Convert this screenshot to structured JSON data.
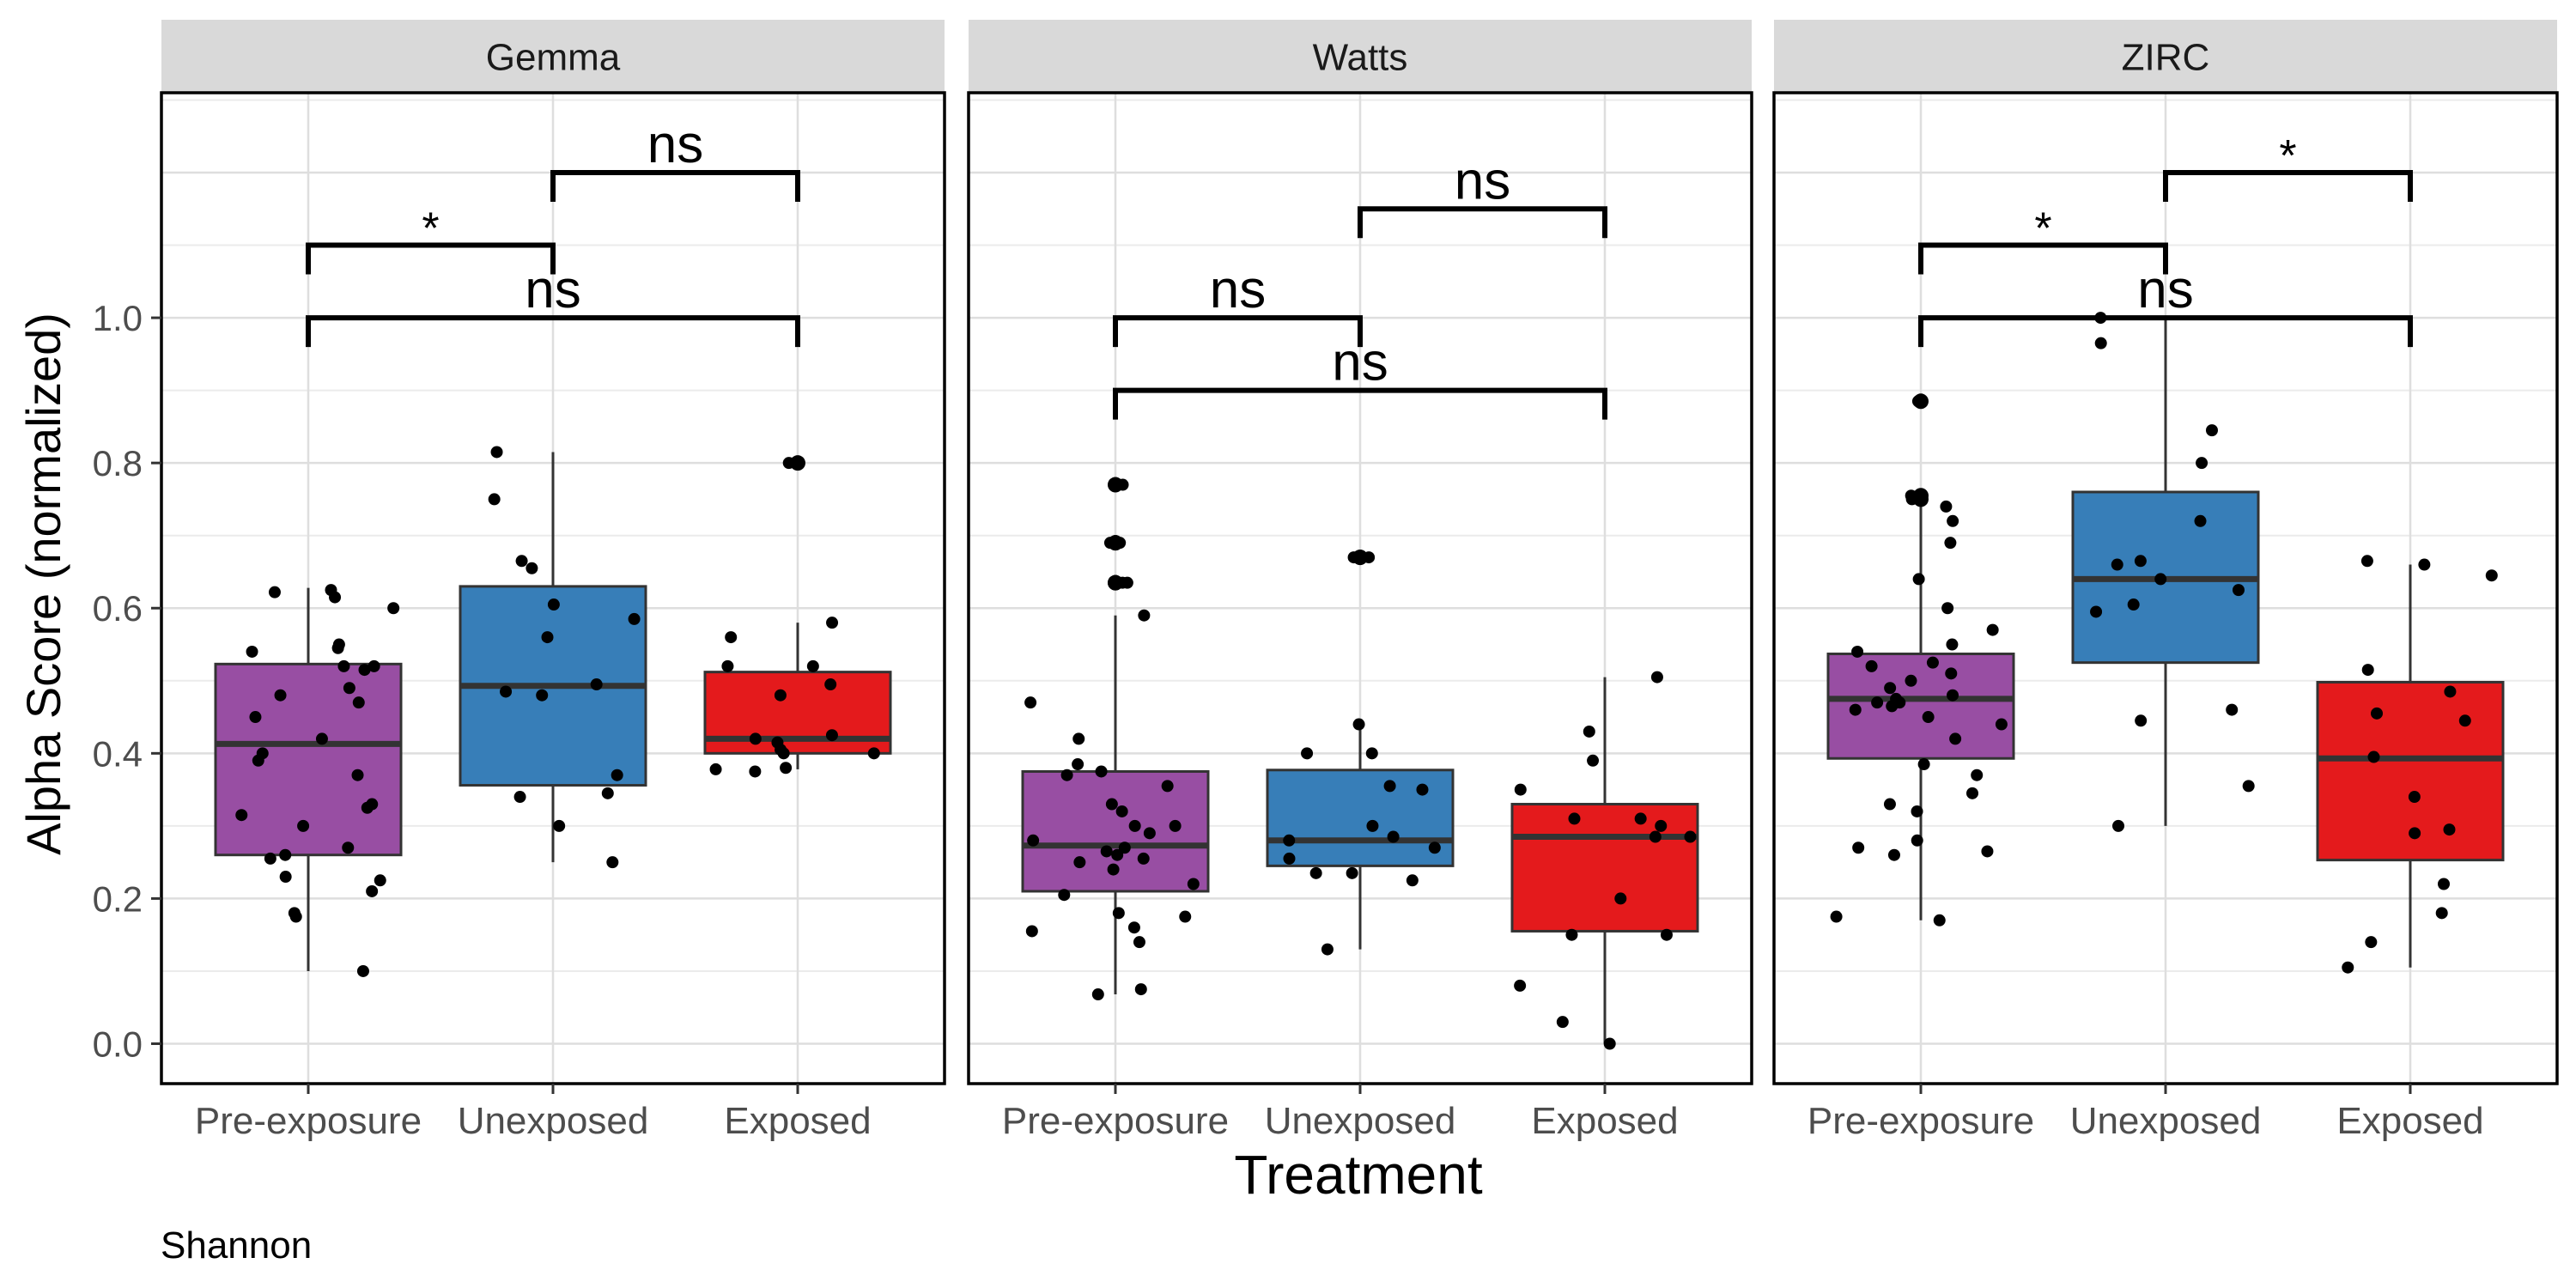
{
  "chart_data": {
    "type": "boxplot",
    "ylabel": "Alpha Score (normalized)",
    "xlabel": "Treatment",
    "caption": "Shannon",
    "y_ticks": [
      "0.0",
      "0.2",
      "0.4",
      "0.6",
      "0.8",
      "1.0"
    ],
    "y_tick_values": [
      0.0,
      0.2,
      0.4,
      0.6,
      0.8,
      1.0
    ],
    "ylim": [
      -0.055,
      1.31
    ],
    "categories": [
      "Pre-exposure",
      "Unexposed",
      "Exposed"
    ],
    "colors": {
      "Pre-exposure": "#984ea3",
      "Unexposed": "#377eb8",
      "Exposed": "#e41a1c"
    },
    "grid": true,
    "facets": [
      {
        "name": "Gemma",
        "boxes": [
          {
            "category": "Pre-exposure",
            "q1": 0.26,
            "median": 0.413,
            "q3": 0.523,
            "whisker_low": 0.1,
            "whisker_high": 0.628,
            "points": [
              0.615,
              0.622,
              0.625,
              0.6,
              0.55,
              0.545,
              0.54,
              0.52,
              0.52,
              0.515,
              0.49,
              0.48,
              0.47,
              0.45,
              0.42,
              0.4,
              0.39,
              0.37,
              0.33,
              0.325,
              0.315,
              0.3,
              0.27,
              0.26,
              0.255,
              0.23,
              0.225,
              0.21,
              0.18,
              0.175,
              0.1
            ],
            "outliers": []
          },
          {
            "category": "Unexposed",
            "q1": 0.356,
            "median": 0.493,
            "q3": 0.63,
            "whisker_low": 0.25,
            "whisker_high": 0.815,
            "points": [
              0.815,
              0.75,
              0.665,
              0.655,
              0.605,
              0.585,
              0.56,
              0.495,
              0.485,
              0.48,
              0.37,
              0.345,
              0.34,
              0.3,
              0.25
            ],
            "outliers": []
          },
          {
            "category": "Exposed",
            "q1": 0.4,
            "median": 0.42,
            "q3": 0.512,
            "whisker_low": 0.378,
            "whisker_high": 0.58,
            "points": [
              0.58,
              0.56,
              0.52,
              0.52,
              0.495,
              0.48,
              0.425,
              0.42,
              0.415,
              0.405,
              0.4,
              0.4,
              0.38,
              0.378,
              0.375
            ],
            "outliers": [
              0.8
            ]
          }
        ],
        "brackets": [
          {
            "from": "Pre-exposure",
            "to": "Unexposed",
            "y": 1.1,
            "label": "*"
          },
          {
            "from": "Unexposed",
            "to": "Exposed",
            "y": 1.2,
            "label": "ns"
          },
          {
            "from": "Pre-exposure",
            "to": "Exposed",
            "y": 1.0,
            "label": "ns"
          }
        ]
      },
      {
        "name": "Watts",
        "boxes": [
          {
            "category": "Pre-exposure",
            "q1": 0.21,
            "median": 0.273,
            "q3": 0.375,
            "whisker_low": 0.068,
            "whisker_high": 0.59,
            "points": [
              0.59,
              0.47,
              0.42,
              0.385,
              0.375,
              0.37,
              0.355,
              0.33,
              0.32,
              0.3,
              0.3,
              0.29,
              0.28,
              0.27,
              0.265,
              0.26,
              0.255,
              0.25,
              0.24,
              0.22,
              0.205,
              0.18,
              0.175,
              0.16,
              0.155,
              0.14,
              0.075,
              0.068
            ],
            "outliers": [
              0.77,
              0.69,
              0.69,
              0.635,
              0.635
            ]
          },
          {
            "category": "Unexposed",
            "q1": 0.245,
            "median": 0.28,
            "q3": 0.377,
            "whisker_low": 0.13,
            "whisker_high": 0.44,
            "points": [
              0.44,
              0.4,
              0.4,
              0.355,
              0.35,
              0.3,
              0.285,
              0.28,
              0.27,
              0.255,
              0.235,
              0.235,
              0.225,
              0.13
            ],
            "outliers": [
              0.67,
              0.67
            ]
          },
          {
            "category": "Exposed",
            "q1": 0.155,
            "median": 0.285,
            "q3": 0.33,
            "whisker_low": 0.0,
            "whisker_high": 0.505,
            "points": [
              0.505,
              0.43,
              0.39,
              0.35,
              0.31,
              0.31,
              0.3,
              0.285,
              0.285,
              0.2,
              0.15,
              0.15,
              0.08,
              0.03,
              0.0
            ],
            "outliers": []
          }
        ],
        "brackets": [
          {
            "from": "Unexposed",
            "to": "Exposed",
            "y": 1.15,
            "label": "ns"
          },
          {
            "from": "Pre-exposure",
            "to": "Unexposed",
            "y": 1.0,
            "label": "ns"
          },
          {
            "from": "Pre-exposure",
            "to": "Exposed",
            "y": 0.9,
            "label": "ns"
          }
        ]
      },
      {
        "name": "ZIRC",
        "boxes": [
          {
            "category": "Pre-exposure",
            "q1": 0.393,
            "median": 0.475,
            "q3": 0.537,
            "whisker_low": 0.17,
            "whisker_high": 0.74,
            "points": [
              0.74,
              0.72,
              0.69,
              0.64,
              0.6,
              0.57,
              0.55,
              0.54,
              0.525,
              0.52,
              0.51,
              0.5,
              0.49,
              0.48,
              0.475,
              0.47,
              0.47,
              0.465,
              0.46,
              0.45,
              0.44,
              0.42,
              0.385,
              0.37,
              0.345,
              0.33,
              0.32,
              0.28,
              0.27,
              0.265,
              0.26,
              0.175,
              0.17
            ],
            "outliers": [
              0.885,
              0.755,
              0.75
            ]
          },
          {
            "category": "Unexposed",
            "q1": 0.525,
            "median": 0.64,
            "q3": 0.76,
            "whisker_low": 0.3,
            "whisker_high": 1.0,
            "points": [
              1.0,
              0.965,
              0.845,
              0.8,
              0.72,
              0.665,
              0.66,
              0.64,
              0.625,
              0.605,
              0.595,
              0.46,
              0.445,
              0.355,
              0.3
            ],
            "outliers": []
          },
          {
            "category": "Exposed",
            "q1": 0.253,
            "median": 0.393,
            "q3": 0.498,
            "whisker_low": 0.105,
            "whisker_high": 0.66,
            "points": [
              0.665,
              0.66,
              0.645,
              0.515,
              0.485,
              0.455,
              0.445,
              0.395,
              0.34,
              0.295,
              0.29,
              0.22,
              0.18,
              0.14,
              0.105
            ],
            "outliers": []
          }
        ],
        "brackets": [
          {
            "from": "Unexposed",
            "to": "Exposed",
            "y": 1.2,
            "label": "*"
          },
          {
            "from": "Pre-exposure",
            "to": "Unexposed",
            "y": 1.1,
            "label": "*"
          },
          {
            "from": "Pre-exposure",
            "to": "Exposed",
            "y": 1.0,
            "label": "ns"
          }
        ]
      }
    ]
  }
}
